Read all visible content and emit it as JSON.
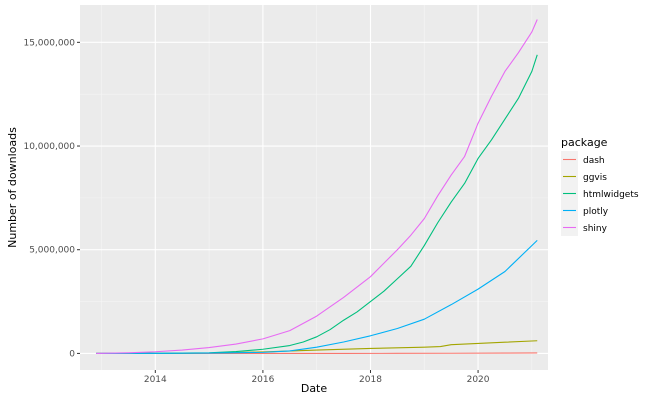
{
  "chart_data": {
    "type": "line",
    "title": "",
    "xlabel": "Date",
    "ylabel": "Number of downloads",
    "x_ticks": [
      {
        "label": "2014",
        "value": 2014
      },
      {
        "label": "2016",
        "value": 2016
      },
      {
        "label": "2018",
        "value": 2018
      },
      {
        "label": "2020",
        "value": 2020
      }
    ],
    "y_ticks": [
      {
        "label": "0",
        "value": 0
      },
      {
        "label": "5,000,000",
        "value": 5000000
      },
      {
        "label": "10,000,000",
        "value": 10000000
      },
      {
        "label": "15,000,000",
        "value": 15000000
      }
    ],
    "xlim": [
      2012.6,
      2021.3
    ],
    "ylim": [
      -800000,
      16800000
    ],
    "grid": true,
    "legend": {
      "title": "package",
      "position": "right"
    },
    "series": [
      {
        "name": "dash",
        "color": "#F8766D",
        "x": [
          2012.9,
          2014,
          2016,
          2017.5,
          2018.5,
          2019.5,
          2020.5,
          2021.1
        ],
        "y": [
          0,
          0,
          0,
          0,
          3000,
          8000,
          15000,
          25000
        ]
      },
      {
        "name": "ggvis",
        "color": "#A3A500",
        "x": [
          2012.9,
          2014,
          2015,
          2016,
          2017,
          2018,
          2019,
          2019.3,
          2019.5,
          2020,
          2020.5,
          2021.1
        ],
        "y": [
          0,
          1000,
          20000,
          70000,
          160000,
          240000,
          300000,
          330000,
          420000,
          480000,
          540000,
          610000
        ]
      },
      {
        "name": "htmlwidgets",
        "color": "#00BF7D",
        "x": [
          2012.9,
          2014,
          2015,
          2015.5,
          2016,
          2016.5,
          2016.75,
          2017,
          2017.25,
          2017.5,
          2017.75,
          2018,
          2018.25,
          2018.5,
          2018.75,
          2019,
          2019.25,
          2019.5,
          2019.75,
          2020,
          2020.25,
          2020.5,
          2020.75,
          2021,
          2021.1
        ],
        "y": [
          0,
          5000,
          30000,
          90000,
          200000,
          380000,
          550000,
          800000,
          1150000,
          1600000,
          2000000,
          2500000,
          3000000,
          3600000,
          4200000,
          5200000,
          6300000,
          7300000,
          8200000,
          9400000,
          10300000,
          11300000,
          12300000,
          13600000,
          14400000
        ]
      },
      {
        "name": "plotly",
        "color": "#00B0F6",
        "x": [
          2012.9,
          2014,
          2015,
          2016,
          2016.5,
          2017,
          2017.5,
          2018,
          2018.5,
          2019,
          2019.5,
          2020,
          2020.5,
          2021.1
        ],
        "y": [
          0,
          3000,
          15000,
          50000,
          120000,
          300000,
          550000,
          850000,
          1200000,
          1650000,
          2350000,
          3100000,
          3950000,
          5450000
        ]
      },
      {
        "name": "shiny",
        "color": "#E76BF3",
        "x": [
          2012.9,
          2013.5,
          2014,
          2014.5,
          2015,
          2015.5,
          2016,
          2016.5,
          2017,
          2017.5,
          2018,
          2018.5,
          2018.75,
          2019,
          2019.25,
          2019.5,
          2019.75,
          2020,
          2020.25,
          2020.5,
          2020.75,
          2021,
          2021.1
        ],
        "y": [
          0,
          30000,
          80000,
          160000,
          280000,
          450000,
          700000,
          1100000,
          1800000,
          2700000,
          3700000,
          5000000,
          5700000,
          6500000,
          7600000,
          8600000,
          9500000,
          11100000,
          12400000,
          13600000,
          14500000,
          15500000,
          16100000
        ]
      }
    ]
  }
}
